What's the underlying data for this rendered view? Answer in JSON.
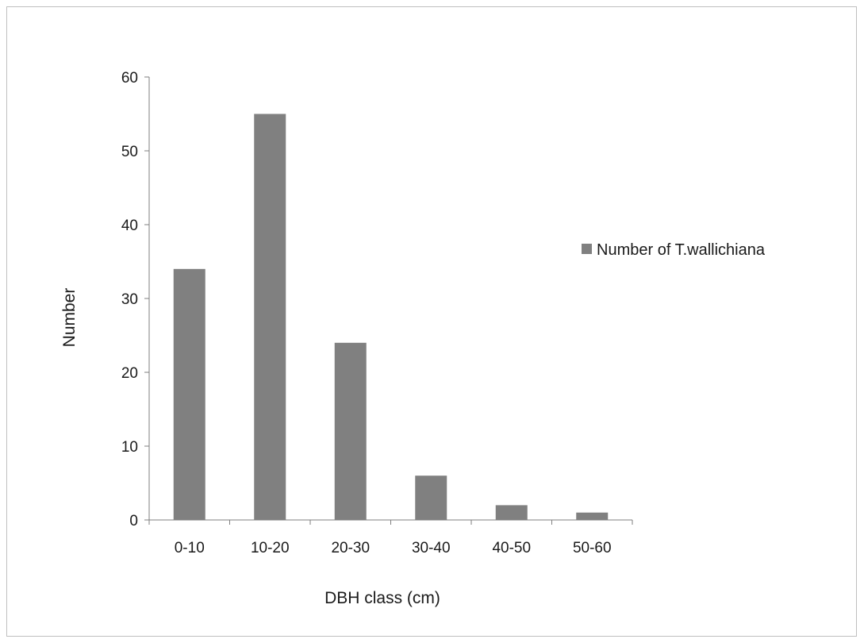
{
  "chart_data": {
    "type": "bar",
    "categories": [
      "0-10",
      "10-20",
      "20-30",
      "30-40",
      "40-50",
      "50-60"
    ],
    "series": [
      {
        "name": "Number of T.wallichiana",
        "values": [
          34,
          55,
          24,
          6,
          2,
          1
        ],
        "color": "#808080"
      }
    ],
    "xlabel": "DBH class (cm)",
    "ylabel": "Number",
    "ylim": [
      0,
      60
    ],
    "yticks": [
      0,
      10,
      20,
      30,
      40,
      50,
      60
    ],
    "grid": false,
    "legend_position": "right"
  }
}
